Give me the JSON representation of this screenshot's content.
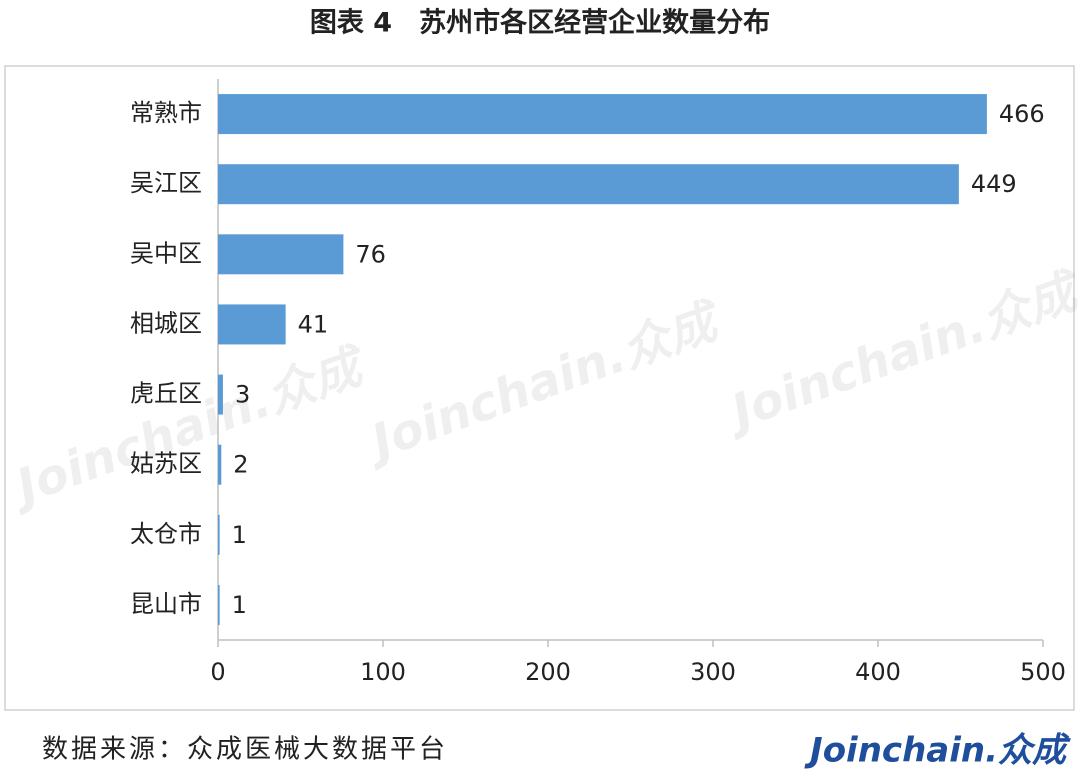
{
  "chart_data": {
    "type": "barh",
    "title": "图表 4　苏州市各区经营企业数量分布",
    "categories": [
      "常熟市",
      "吴江区",
      "吴中区",
      "相城区",
      "虎丘区",
      "姑苏区",
      "太仓市",
      "昆山市"
    ],
    "values": [
      466,
      449,
      76,
      41,
      3,
      2,
      1,
      1
    ],
    "color": "#5b9bd5",
    "xlim": [
      0,
      500
    ],
    "xticks": [
      0,
      100,
      200,
      300,
      400,
      500
    ],
    "grid": false,
    "watermark": "Joinchain.众成",
    "source": "数据来源：众成医械大数据平台",
    "logo": "Joinchain.众成"
  }
}
